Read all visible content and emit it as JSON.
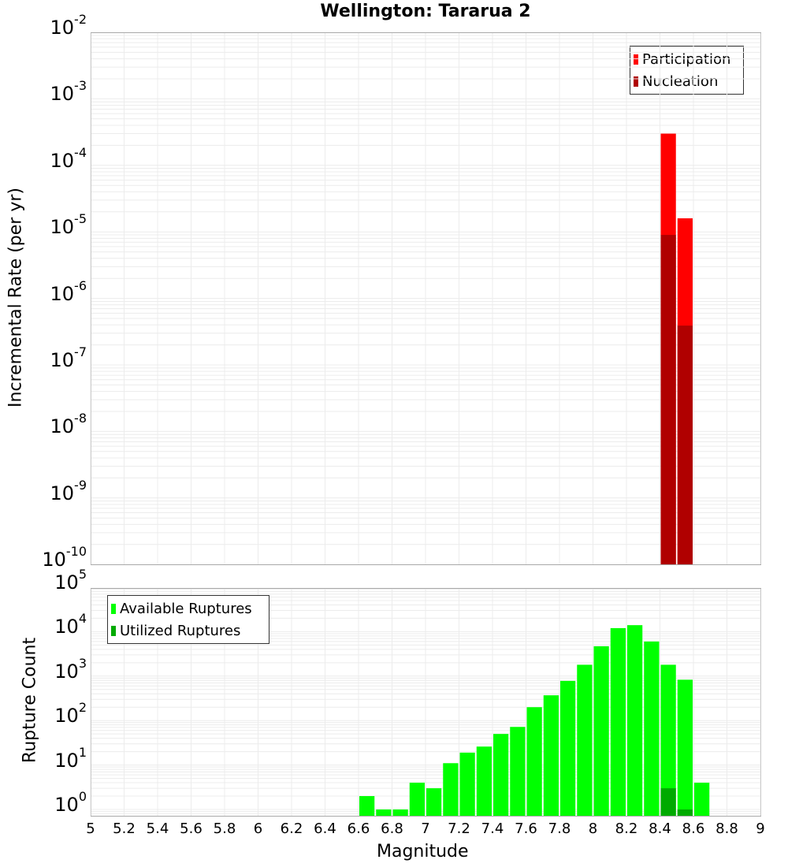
{
  "chart_data": [
    {
      "type": "bar",
      "title": "Wellington: Tararua 2",
      "xlabel": "",
      "ylabel": "Incremental Rate (per yr)",
      "yscale": "log",
      "ylim": [
        1e-10,
        0.01
      ],
      "xlim": [
        5,
        9
      ],
      "yticks": [
        "10^-2",
        "10^-3",
        "10^-4",
        "10^-5",
        "10^-6",
        "10^-7",
        "10^-8",
        "10^-9",
        "10^-10"
      ],
      "legend_position": "upper right",
      "grid": true,
      "series": [
        {
          "name": "Participation",
          "color": "#ff0000",
          "x": [
            8.45,
            8.55
          ],
          "values": [
            0.0003,
            1.6e-05
          ]
        },
        {
          "name": "Nucleation",
          "color": "#b00000",
          "x": [
            8.45,
            8.55
          ],
          "values": [
            9e-06,
            3.9e-07
          ]
        }
      ]
    },
    {
      "type": "bar",
      "title": "",
      "xlabel": "Magnitude",
      "ylabel": "Rupture Count",
      "yscale": "log",
      "ylim": [
        0.72,
        100000.0
      ],
      "xlim": [
        5,
        9
      ],
      "xticks": [
        "5",
        "5.2",
        "5.4",
        "5.6",
        "5.8",
        "6",
        "6.2",
        "6.4",
        "6.6",
        "6.8",
        "7",
        "7.2",
        "7.4",
        "7.6",
        "7.8",
        "8",
        "8.2",
        "8.4",
        "8.6",
        "8.8",
        "9"
      ],
      "yticks": [
        "10^0",
        "10^1",
        "10^2",
        "10^3",
        "10^4",
        "10^5"
      ],
      "legend_position": "upper left",
      "grid": true,
      "series": [
        {
          "name": "Available Ruptures",
          "color": "#00ff00",
          "x": [
            6.65,
            6.75,
            6.85,
            6.95,
            7.05,
            7.15,
            7.25,
            7.35,
            7.45,
            7.55,
            7.65,
            7.75,
            7.85,
            7.95,
            8.05,
            8.15,
            8.25,
            8.35,
            8.45,
            8.55,
            8.65
          ],
          "values": [
            2,
            1,
            1,
            4,
            3,
            11,
            19,
            26,
            50,
            72,
            200,
            370,
            780,
            1800,
            4700,
            12000,
            14000,
            6000,
            1800,
            830,
            4
          ]
        },
        {
          "name": "Utilized Ruptures",
          "color": "#00aa00",
          "x": [
            8.45,
            8.55
          ],
          "values": [
            3,
            1
          ]
        }
      ]
    }
  ],
  "title": "Wellington: Tararua 2",
  "top": {
    "ylabel": "Incremental Rate (per yr)",
    "yticks": [
      {
        "base": "10",
        "exp": "-2"
      },
      {
        "base": "10",
        "exp": "-3"
      },
      {
        "base": "10",
        "exp": "-4"
      },
      {
        "base": "10",
        "exp": "-5"
      },
      {
        "base": "10",
        "exp": "-6"
      },
      {
        "base": "10",
        "exp": "-7"
      },
      {
        "base": "10",
        "exp": "-8"
      },
      {
        "base": "10",
        "exp": "-9"
      },
      {
        "base": "10",
        "exp": "-10"
      }
    ],
    "legend": [
      {
        "label": "Participation",
        "color": "#ff0000"
      },
      {
        "label": "Nucleation",
        "color": "#b00000"
      }
    ]
  },
  "bottom": {
    "ylabel": "Rupture Count",
    "xlabel": "Magnitude",
    "yticks": [
      {
        "base": "10",
        "exp": "5"
      },
      {
        "base": "10",
        "exp": "4"
      },
      {
        "base": "10",
        "exp": "3"
      },
      {
        "base": "10",
        "exp": "2"
      },
      {
        "base": "10",
        "exp": "1"
      },
      {
        "base": "10",
        "exp": "0"
      }
    ],
    "xticks": [
      "5",
      "5.2",
      "5.4",
      "5.6",
      "5.8",
      "6",
      "6.2",
      "6.4",
      "6.6",
      "6.8",
      "7",
      "7.2",
      "7.4",
      "7.6",
      "7.8",
      "8",
      "8.2",
      "8.4",
      "8.6",
      "8.8",
      "9"
    ],
    "legend": [
      {
        "label": "Available Ruptures",
        "color": "#00ff00"
      },
      {
        "label": "Utilized Ruptures",
        "color": "#00aa00"
      }
    ]
  }
}
